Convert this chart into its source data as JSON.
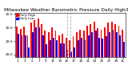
{
  "title": "Milwaukee Weather Barometric Pressure Daily High/Low",
  "title_fontsize": 4.2,
  "bar_width": 0.42,
  "background_color": "#ffffff",
  "high_color": "#ff0000",
  "low_color": "#0000ff",
  "ylabel_fontsize": 3.2,
  "xlabel_fontsize": 3.0,
  "days": [
    1,
    2,
    3,
    4,
    5,
    6,
    7,
    8,
    9,
    10,
    11,
    12,
    13,
    14,
    15,
    16,
    17,
    18,
    19,
    20,
    21,
    22,
    23,
    24,
    25,
    26,
    27,
    28,
    29,
    30,
    31
  ],
  "highs": [
    30.05,
    29.95,
    30.05,
    29.72,
    30.18,
    30.28,
    30.32,
    30.12,
    29.88,
    29.82,
    30.02,
    29.88,
    29.72,
    29.78,
    29.62,
    29.52,
    29.68,
    29.82,
    29.92,
    29.88,
    30.08,
    30.12,
    30.22,
    29.98,
    29.92,
    30.02,
    30.18,
    30.22,
    30.12,
    30.08,
    29.92
  ],
  "lows": [
    29.78,
    29.72,
    29.72,
    29.28,
    29.82,
    30.02,
    30.02,
    29.72,
    29.38,
    29.52,
    29.62,
    29.52,
    29.42,
    29.42,
    29.18,
    29.12,
    29.28,
    29.52,
    29.62,
    29.52,
    29.72,
    29.82,
    29.88,
    29.62,
    29.58,
    29.68,
    29.82,
    29.92,
    29.82,
    29.72,
    29.48
  ],
  "ylim": [
    28.9,
    30.55
  ],
  "yticks": [
    29.0,
    29.5,
    30.0,
    30.5
  ],
  "ytick_labels": [
    "29.0",
    "29.5",
    "30.0",
    "30.5"
  ],
  "dashed_lines": [
    15,
    16
  ],
  "legend_high": "Daily High",
  "legend_low": "Daily Low",
  "xticks": [
    1,
    3,
    5,
    7,
    9,
    11,
    13,
    15,
    17,
    19,
    21,
    23,
    25,
    27,
    29,
    31
  ]
}
